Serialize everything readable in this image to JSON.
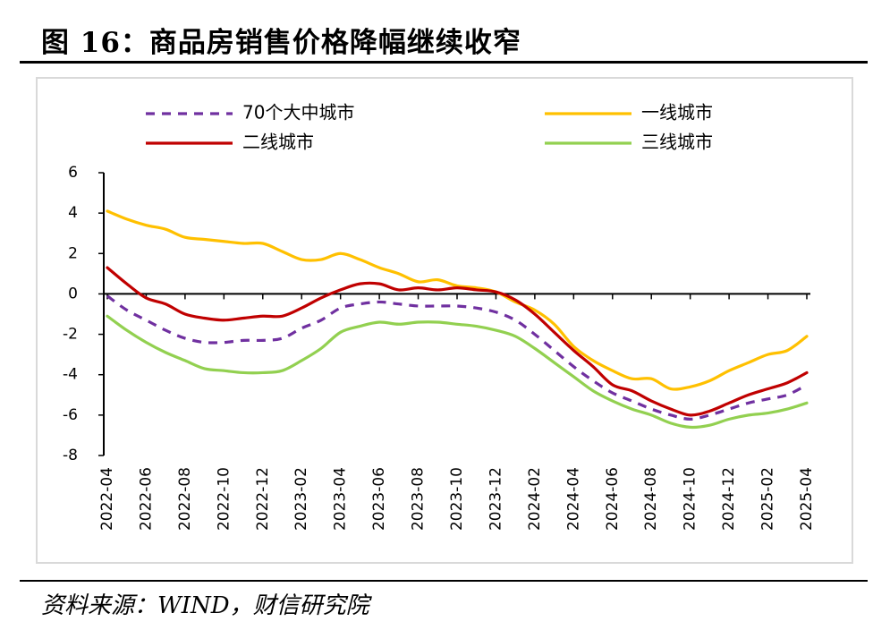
{
  "figure": {
    "title": "图 16：商品房销售价格降幅继续收窄",
    "source": "资料来源：WIND，财信研究院"
  },
  "chart_data": {
    "type": "line",
    "ylim": [
      -8,
      6
    ],
    "yticks": [
      6,
      4,
      2,
      0,
      -2,
      -4,
      -6,
      -8
    ],
    "negative_tick_color": "#ff0000",
    "xtick_labels": [
      "2022-04",
      "2022-06",
      "2022-08",
      "2022-10",
      "2022-12",
      "2023-02",
      "2023-04",
      "2023-06",
      "2023-08",
      "2023-10",
      "2023-12",
      "2024-02",
      "2024-04",
      "2024-06",
      "2024-08",
      "2024-10",
      "2024-12",
      "2025-02",
      "2025-04"
    ],
    "x": [
      "2022-04",
      "2022-05",
      "2022-06",
      "2022-07",
      "2022-08",
      "2022-09",
      "2022-10",
      "2022-11",
      "2022-12",
      "2023-01",
      "2023-02",
      "2023-03",
      "2023-04",
      "2023-05",
      "2023-06",
      "2023-07",
      "2023-08",
      "2023-09",
      "2023-10",
      "2023-11",
      "2023-12",
      "2024-01",
      "2024-02",
      "2024-03",
      "2024-04",
      "2024-05",
      "2024-06",
      "2024-07",
      "2024-08",
      "2024-09",
      "2024-10",
      "2024-11",
      "2024-12",
      "2025-01",
      "2025-02",
      "2025-03",
      "2025-04"
    ],
    "legend_placement": "top",
    "series": [
      {
        "name": "70个大中城市",
        "color": "#7030a0",
        "dash": true,
        "values": [
          -0.1,
          -0.8,
          -1.3,
          -1.8,
          -2.2,
          -2.4,
          -2.4,
          -2.3,
          -2.3,
          -2.2,
          -1.7,
          -1.3,
          -0.7,
          -0.5,
          -0.4,
          -0.5,
          -0.6,
          -0.6,
          -0.6,
          -0.7,
          -0.9,
          -1.3,
          -2.0,
          -2.8,
          -3.6,
          -4.3,
          -4.9,
          -5.3,
          -5.7,
          -6.0,
          -6.2,
          -6.0,
          -5.7,
          -5.4,
          -5.2,
          -5.0,
          -4.5
        ]
      },
      {
        "name": "一线城市",
        "color": "#ffc000",
        "dash": false,
        "values": [
          4.1,
          3.7,
          3.4,
          3.2,
          2.8,
          2.7,
          2.6,
          2.5,
          2.5,
          2.1,
          1.7,
          1.7,
          2.0,
          1.7,
          1.3,
          1.0,
          0.6,
          0.7,
          0.4,
          0.3,
          0.1,
          -0.4,
          -0.8,
          -1.5,
          -2.6,
          -3.3,
          -3.8,
          -4.2,
          -4.2,
          -4.7,
          -4.6,
          -4.3,
          -3.8,
          -3.4,
          -3.0,
          -2.8,
          -2.1
        ]
      },
      {
        "name": "二线城市",
        "color": "#c00000",
        "dash": false,
        "values": [
          1.3,
          0.5,
          -0.2,
          -0.5,
          -1.0,
          -1.2,
          -1.3,
          -1.2,
          -1.1,
          -1.1,
          -0.7,
          -0.2,
          0.2,
          0.5,
          0.5,
          0.2,
          0.3,
          0.2,
          0.3,
          0.2,
          0.1,
          -0.3,
          -1.0,
          -1.9,
          -2.8,
          -3.6,
          -4.5,
          -4.8,
          -5.3,
          -5.7,
          -6.0,
          -5.8,
          -5.4,
          -5.0,
          -4.7,
          -4.4,
          -3.9
        ]
      },
      {
        "name": "三线城市",
        "color": "#92d050",
        "dash": false,
        "values": [
          -1.1,
          -1.8,
          -2.4,
          -2.9,
          -3.3,
          -3.7,
          -3.8,
          -3.9,
          -3.9,
          -3.8,
          -3.3,
          -2.7,
          -1.9,
          -1.6,
          -1.4,
          -1.5,
          -1.4,
          -1.4,
          -1.5,
          -1.6,
          -1.8,
          -2.1,
          -2.7,
          -3.4,
          -4.1,
          -4.8,
          -5.3,
          -5.7,
          -6.0,
          -6.4,
          -6.6,
          -6.5,
          -6.2,
          -6.0,
          -5.9,
          -5.7,
          -5.4
        ]
      }
    ]
  }
}
